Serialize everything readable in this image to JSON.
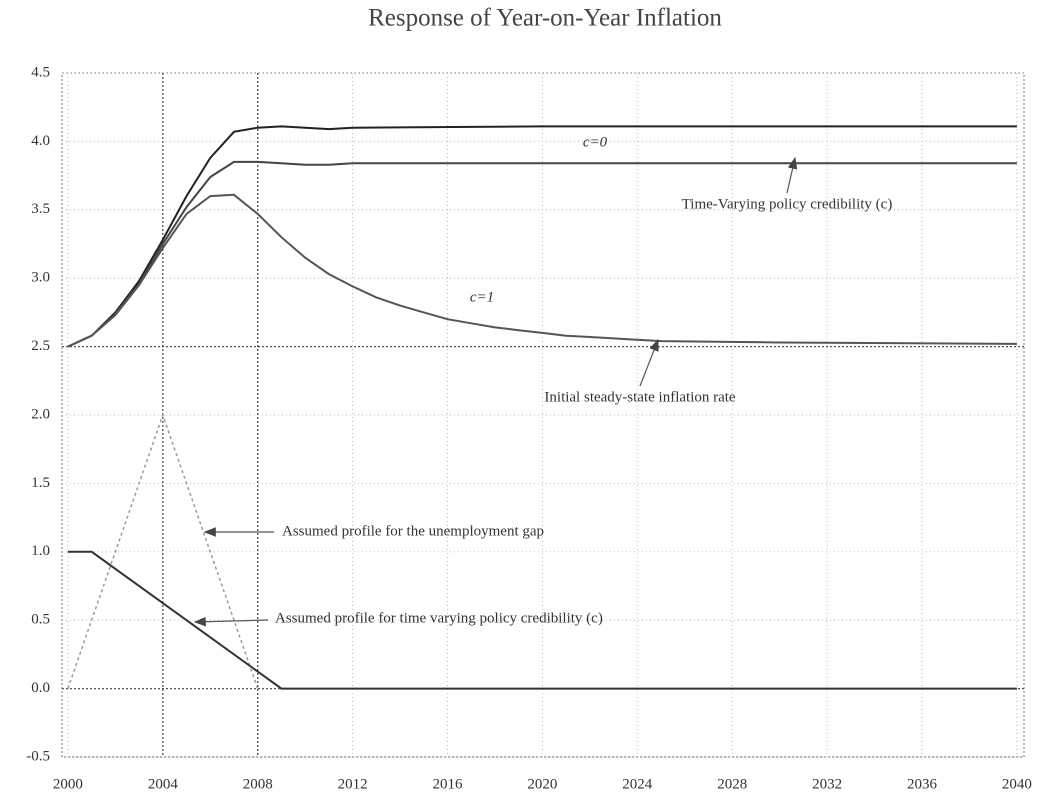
{
  "chart_data": {
    "type": "line",
    "title": "Response of Year-on-Year Inflation",
    "xlim": [
      1999.75,
      2040.3
    ],
    "ylim": [
      -0.5,
      4.5
    ],
    "xticks": [
      2000,
      2004,
      2008,
      2012,
      2016,
      2020,
      2024,
      2028,
      2032,
      2036,
      2040
    ],
    "yticks": [
      -0.5,
      {
        "value": 0,
        "label": "0.0"
      },
      0.5,
      {
        "value": 1,
        "label": "1.0"
      },
      1.5,
      {
        "value": 2,
        "label": "2.0"
      },
      2.5,
      {
        "value": 3,
        "label": "3.0"
      },
      3.5,
      {
        "value": 4,
        "label": "4.0"
      },
      4.5
    ],
    "grid": true,
    "reference_lines": [
      2.5,
      0
    ],
    "vlines": [
      2004,
      2008
    ],
    "series": [
      {
        "color": "#222222",
        "dash": false,
        "x": [
          2000,
          2001,
          2002,
          2003,
          2004,
          2005,
          2006,
          2007,
          2008,
          2009,
          2010,
          2011,
          2012,
          2020,
          2030,
          2040
        ],
        "values": [
          2.5,
          2.58,
          2.75,
          2.98,
          3.28,
          3.6,
          3.88,
          4.07,
          4.1,
          4.11,
          4.1,
          4.09,
          4.1,
          4.11,
          4.11,
          4.11
        ]
      },
      {
        "color": "#444444",
        "dash": false,
        "x": [
          2000,
          2001,
          2002,
          2003,
          2004,
          2005,
          2006,
          2007,
          2008,
          2009,
          2010,
          2011,
          2012,
          2020,
          2030,
          2040
        ],
        "values": [
          2.5,
          2.58,
          2.74,
          2.96,
          3.25,
          3.52,
          3.74,
          3.85,
          3.85,
          3.84,
          3.83,
          3.83,
          3.84,
          3.84,
          3.84,
          3.84
        ]
      },
      {
        "color": "#555555",
        "dash": false,
        "x": [
          2000,
          2001,
          2002,
          2003,
          2004,
          2005,
          2006,
          2007,
          2008,
          2009,
          2010,
          2011,
          2012,
          2013,
          2014,
          2015,
          2016,
          2017,
          2018,
          2019,
          2020,
          2021,
          2022,
          2023,
          2024,
          2025,
          2030,
          2040
        ],
        "values": [
          2.5,
          2.58,
          2.73,
          2.95,
          3.22,
          3.47,
          3.6,
          3.61,
          3.47,
          3.3,
          3.15,
          3.03,
          2.94,
          2.86,
          2.8,
          2.75,
          2.7,
          2.67,
          2.64,
          2.62,
          2.6,
          2.58,
          2.57,
          2.56,
          2.55,
          2.54,
          2.53,
          2.52
        ]
      },
      {
        "color": "#999999",
        "dash": true,
        "x": [
          2000,
          2004,
          2008
        ],
        "values": [
          0,
          2,
          0
        ]
      },
      {
        "color": "#333333",
        "dash": false,
        "x": [
          2000,
          2001,
          2009,
          2040
        ],
        "values": [
          1,
          1,
          0,
          0
        ]
      }
    ],
    "annotations": [
      "c=0",
      "Time-Varying policy credibility (c)",
      "c=1",
      "Initial steady-state inflation rate",
      "Assumed profile for the unemployment gap",
      "Assumed profile for time varying policy credibility (c)"
    ]
  }
}
